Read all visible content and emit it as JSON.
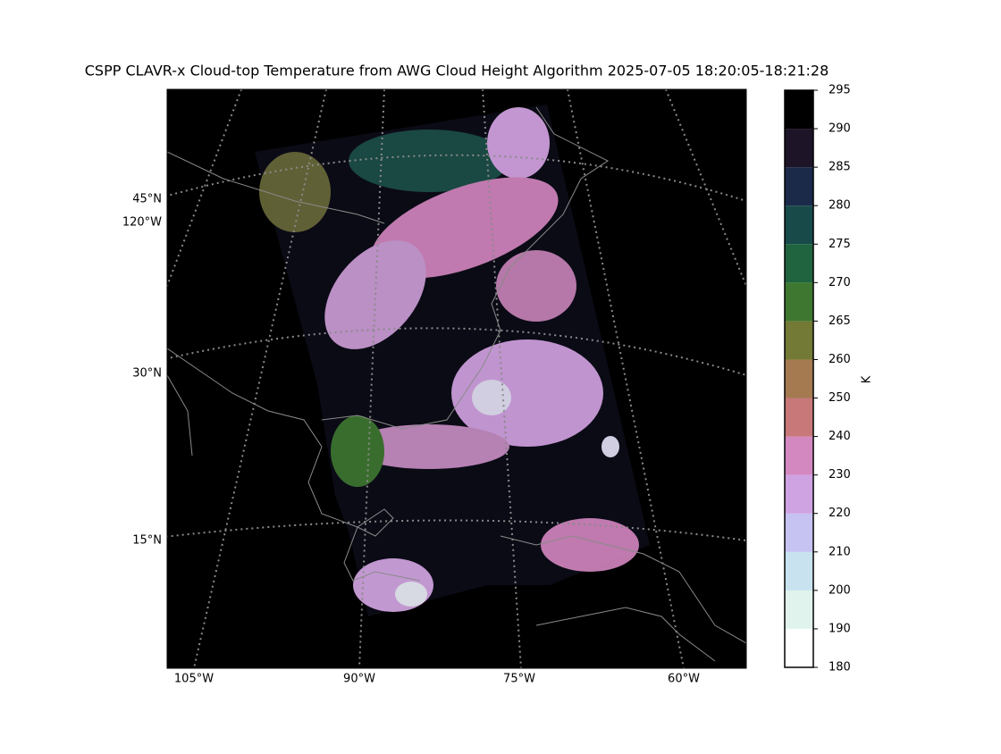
{
  "title": "CSPP CLAVR-x Cloud-top Temperature from AWG Cloud Height Algorithm 2025-07-05 18:20:05-18:21:28",
  "map": {
    "lat_labels": [
      "45°N",
      "30°N",
      "15°N"
    ],
    "left_lon_labels": [
      "120°W"
    ],
    "bottom_lon_labels": [
      "105°W",
      "90°W",
      "75°W",
      "60°W"
    ]
  },
  "colorbar": {
    "label": "K",
    "boundaries": [
      180,
      190,
      200,
      210,
      220,
      230,
      240,
      250,
      260,
      265,
      270,
      275,
      280,
      285,
      290,
      295
    ],
    "colors": [
      "#ffffff",
      "#e0f3ec",
      "#c8e2f0",
      "#c6c2f2",
      "#cfa2e2",
      "#d488c0",
      "#c87878",
      "#a57a50",
      "#727a35",
      "#3e7830",
      "#20643f",
      "#184a4a",
      "#1c2a4a",
      "#1e1428",
      "#000000"
    ]
  }
}
